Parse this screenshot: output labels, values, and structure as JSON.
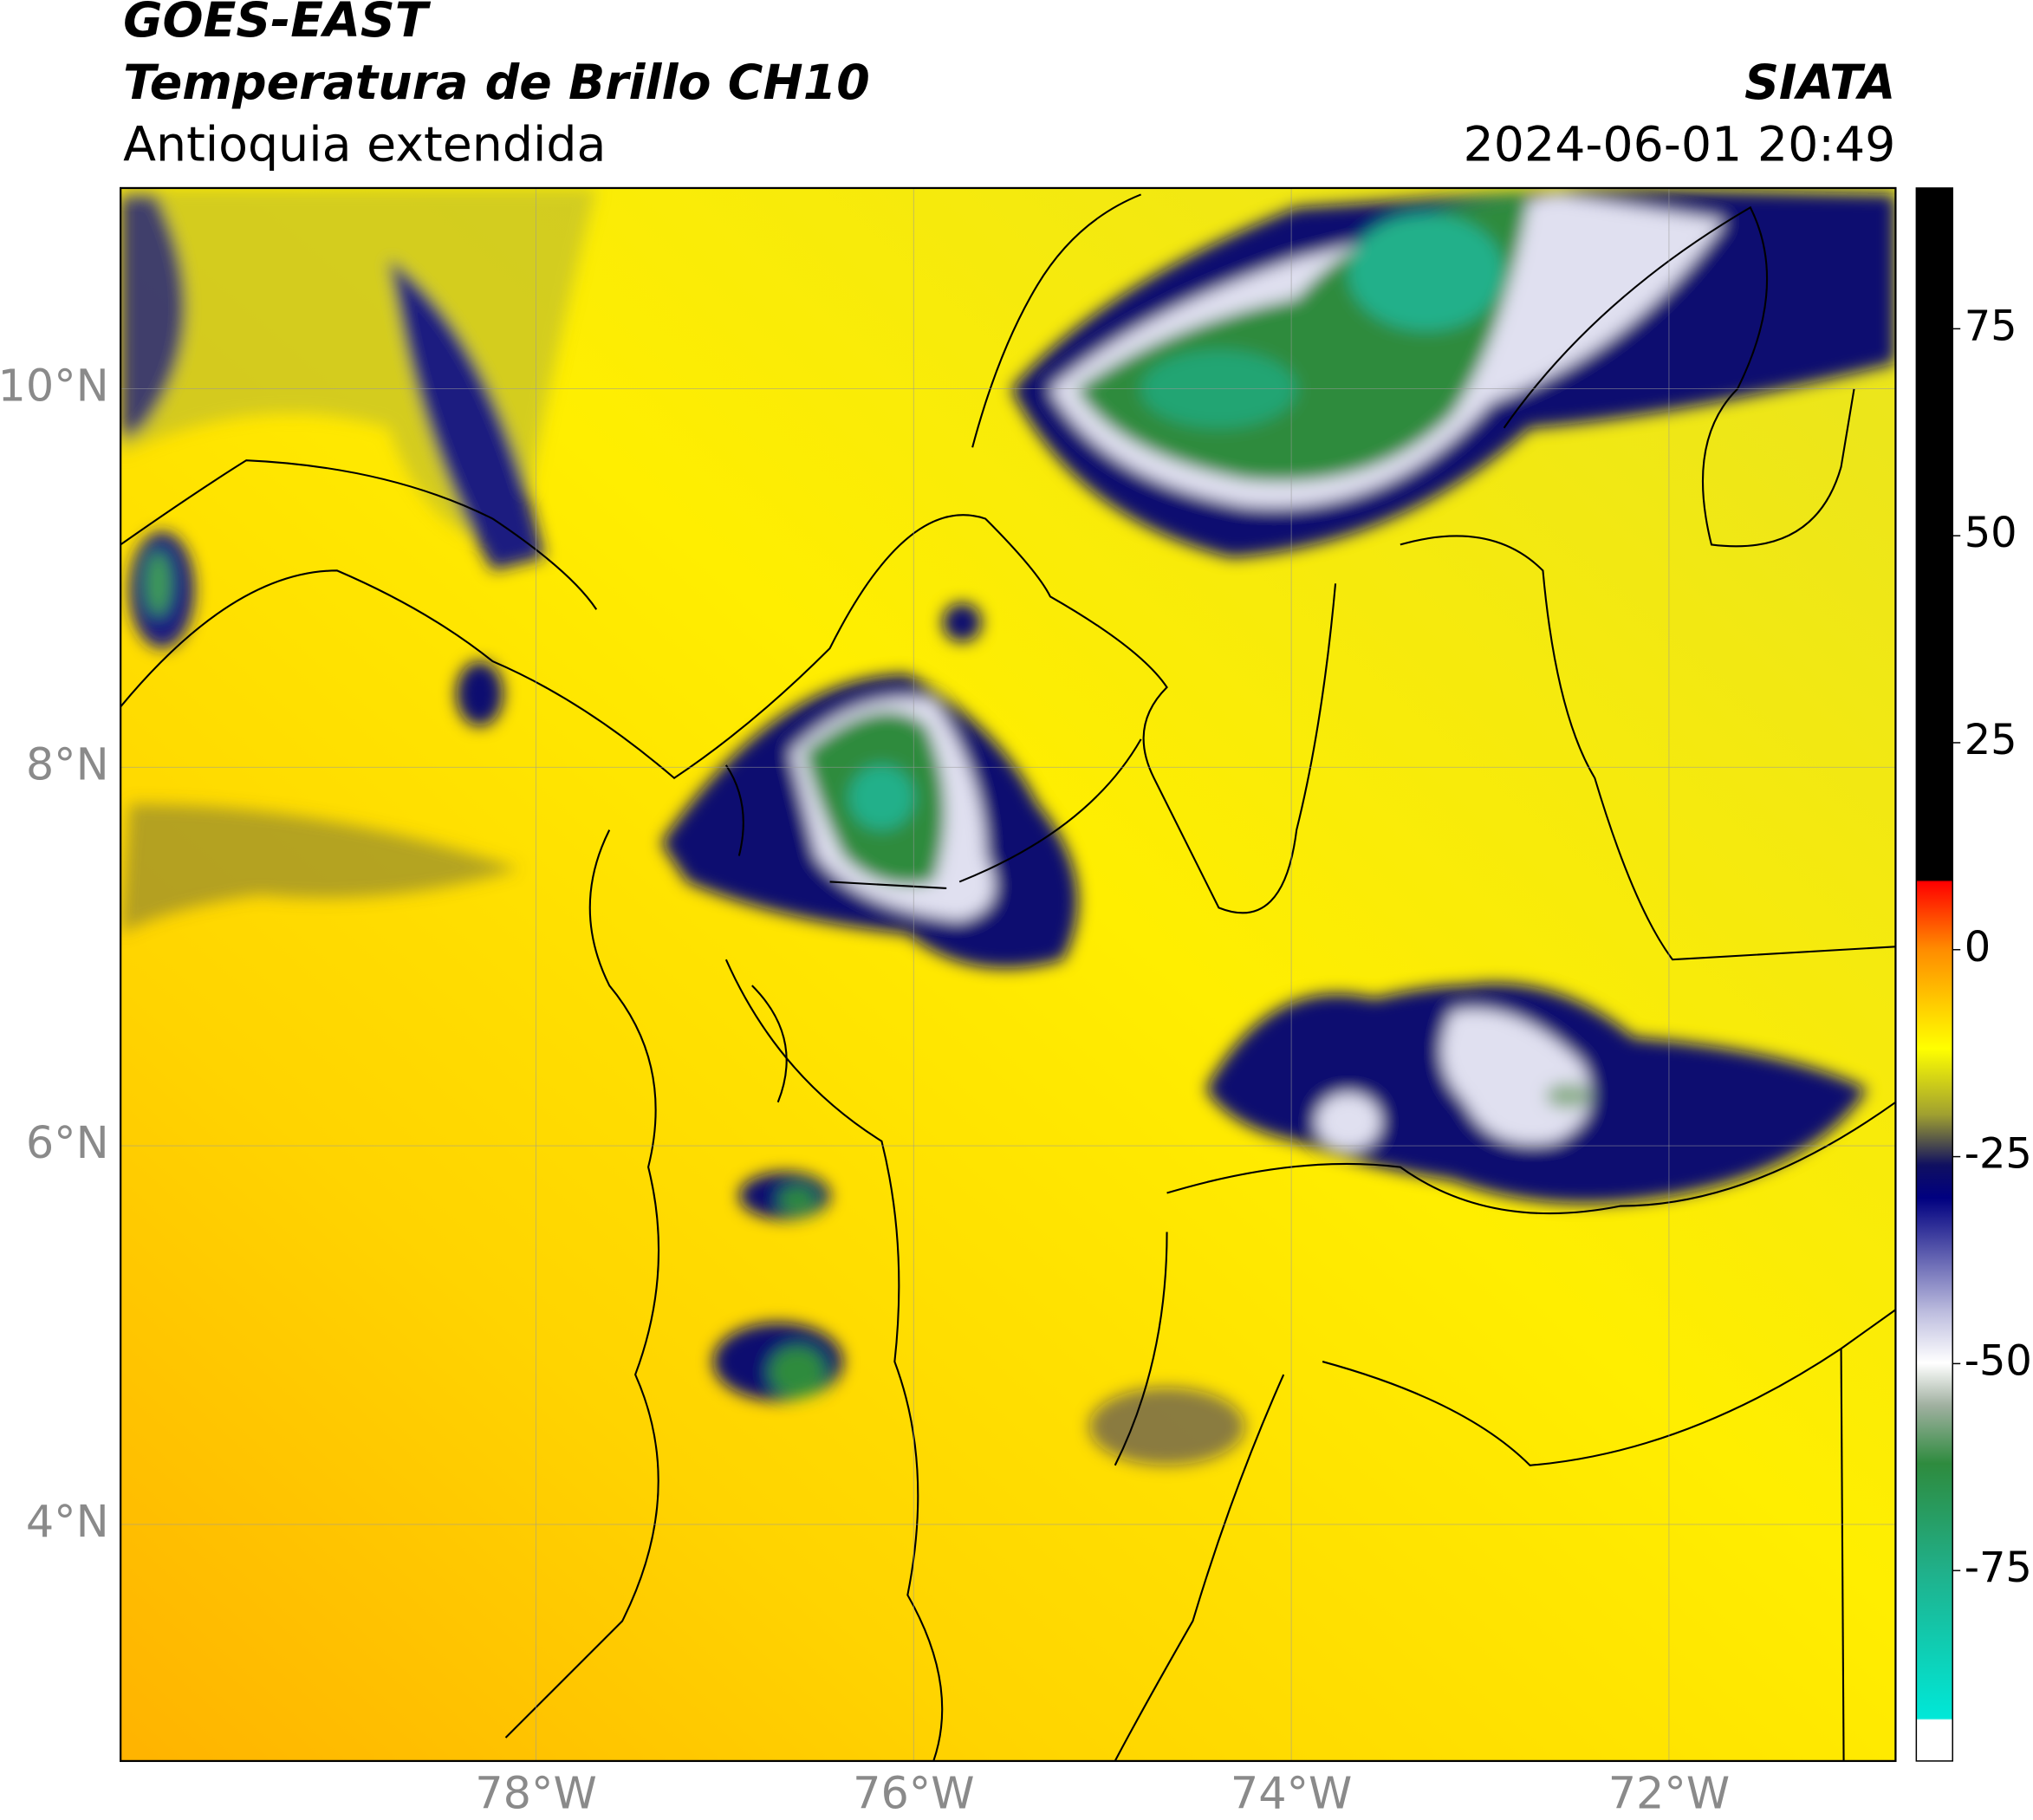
{
  "header": {
    "line1": "GOES-EAST",
    "line2": "Temperatura de Brillo CH10",
    "region": "Antioquia extendida",
    "source": "SIATA",
    "datetime": "2024-06-01 20:49"
  },
  "map": {
    "xlim": [
      -80.2,
      -70.8
    ],
    "ylim": [
      2.75,
      11.06
    ],
    "xticks": [
      {
        "value": -78,
        "label": "78°W"
      },
      {
        "value": -76,
        "label": "76°W"
      },
      {
        "value": -74,
        "label": "74°W"
      },
      {
        "value": -72,
        "label": "72°W"
      }
    ],
    "yticks": [
      {
        "value": 10,
        "label": "10°N"
      },
      {
        "value": 8,
        "label": "8°N"
      },
      {
        "value": 6,
        "label": "6°N"
      },
      {
        "value": 4,
        "label": "4°N"
      }
    ],
    "grid": true
  },
  "colorbar": {
    "lim": [
      -98,
      92
    ],
    "ticks": [
      75,
      50,
      25,
      0,
      -25,
      -50,
      -75
    ]
  }
}
